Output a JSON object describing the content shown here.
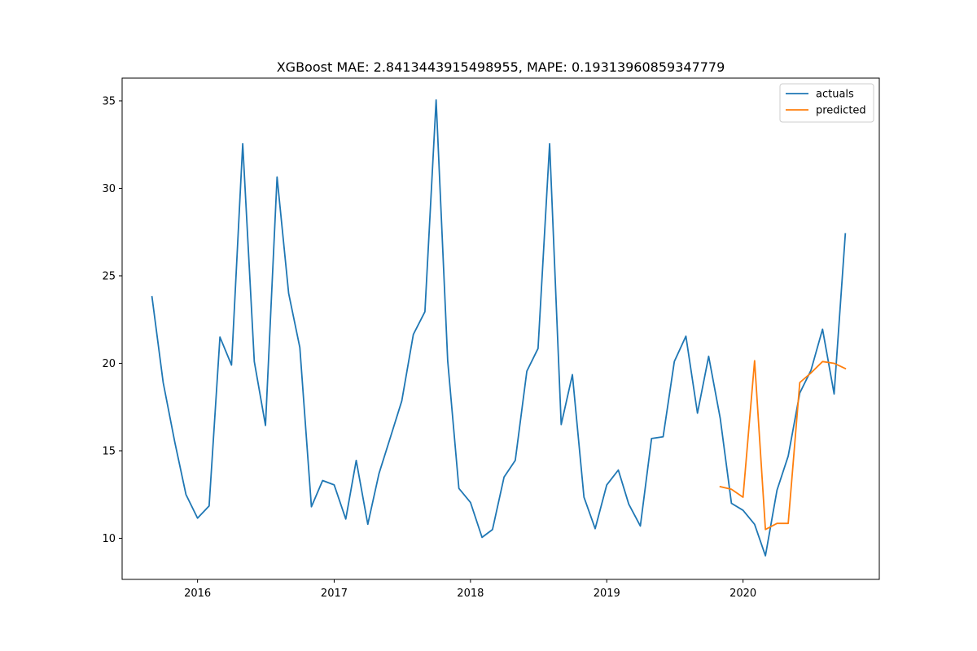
{
  "chart_data": {
    "type": "line",
    "title": "XGBoost MAE: 2.8413443915498955, MAPE: 0.19313960859347779",
    "xlabel": "",
    "ylabel": "",
    "xlim": [
      "2015-06-13",
      "2020-12-31"
    ],
    "ylim": [
      7.65,
      36.3
    ],
    "x_ticks": [
      {
        "date": "2016-01-01",
        "label": "2016"
      },
      {
        "date": "2017-01-01",
        "label": "2017"
      },
      {
        "date": "2018-01-01",
        "label": "2018"
      },
      {
        "date": "2019-01-01",
        "label": "2019"
      },
      {
        "date": "2020-01-01",
        "label": "2020"
      }
    ],
    "y_ticks": [
      10,
      15,
      20,
      25,
      30,
      35
    ],
    "grid": false,
    "legend": {
      "position": "top-right"
    },
    "series": [
      {
        "name": "actuals",
        "color": "#1f77b4",
        "points": [
          [
            "2015-09-01",
            23.8
          ],
          [
            "2015-10-01",
            18.9
          ],
          [
            "2015-11-01",
            15.5
          ],
          [
            "2015-12-01",
            12.5
          ],
          [
            "2016-01-01",
            11.15
          ],
          [
            "2016-02-01",
            11.85
          ],
          [
            "2016-03-01",
            21.5
          ],
          [
            "2016-04-01",
            19.9
          ],
          [
            "2016-05-01",
            32.55
          ],
          [
            "2016-06-01",
            20.1
          ],
          [
            "2016-07-01",
            16.45
          ],
          [
            "2016-08-01",
            30.65
          ],
          [
            "2016-09-01",
            24.0
          ],
          [
            "2016-10-01",
            20.9
          ],
          [
            "2016-11-01",
            11.8
          ],
          [
            "2016-12-01",
            13.3
          ],
          [
            "2017-01-01",
            13.05
          ],
          [
            "2017-02-01",
            11.1
          ],
          [
            "2017-03-01",
            14.45
          ],
          [
            "2017-04-01",
            10.8
          ],
          [
            "2017-05-01",
            13.7
          ],
          [
            "2017-06-01",
            15.8
          ],
          [
            "2017-07-01",
            17.85
          ],
          [
            "2017-08-01",
            21.65
          ],
          [
            "2017-09-01",
            22.95
          ],
          [
            "2017-10-01",
            35.05
          ],
          [
            "2017-11-01",
            20.15
          ],
          [
            "2017-12-01",
            12.85
          ],
          [
            "2018-01-01",
            12.05
          ],
          [
            "2018-02-01",
            10.05
          ],
          [
            "2018-03-01",
            10.5
          ],
          [
            "2018-04-01",
            13.5
          ],
          [
            "2018-05-01",
            14.45
          ],
          [
            "2018-06-01",
            19.55
          ],
          [
            "2018-07-01",
            20.85
          ],
          [
            "2018-08-01",
            32.55
          ],
          [
            "2018-09-01",
            16.5
          ],
          [
            "2018-10-01",
            19.35
          ],
          [
            "2018-11-01",
            12.35
          ],
          [
            "2018-12-01",
            10.55
          ],
          [
            "2019-01-01",
            13.05
          ],
          [
            "2019-02-01",
            13.9
          ],
          [
            "2019-03-01",
            11.95
          ],
          [
            "2019-04-01",
            10.7
          ],
          [
            "2019-05-01",
            15.7
          ],
          [
            "2019-06-01",
            15.8
          ],
          [
            "2019-07-01",
            20.1
          ],
          [
            "2019-08-01",
            21.55
          ],
          [
            "2019-09-01",
            17.15
          ],
          [
            "2019-10-01",
            20.4
          ],
          [
            "2019-11-01",
            16.85
          ],
          [
            "2019-12-01",
            12.0
          ],
          [
            "2020-01-01",
            11.6
          ],
          [
            "2020-02-01",
            10.8
          ],
          [
            "2020-03-01",
            9.0
          ],
          [
            "2020-04-01",
            12.75
          ],
          [
            "2020-05-01",
            14.7
          ],
          [
            "2020-06-01",
            18.3
          ],
          [
            "2020-07-01",
            19.6
          ],
          [
            "2020-08-01",
            21.95
          ],
          [
            "2020-09-01",
            18.25
          ],
          [
            "2020-10-01",
            27.4
          ]
        ]
      },
      {
        "name": "predicted",
        "color": "#ff7f0e",
        "points": [
          [
            "2019-11-01",
            12.95
          ],
          [
            "2019-12-01",
            12.8
          ],
          [
            "2020-01-01",
            12.35
          ],
          [
            "2020-02-01",
            20.15
          ],
          [
            "2020-03-01",
            10.5
          ],
          [
            "2020-04-01",
            10.85
          ],
          [
            "2020-05-01",
            10.85
          ],
          [
            "2020-06-01",
            18.9
          ],
          [
            "2020-07-01",
            19.45
          ],
          [
            "2020-08-01",
            20.1
          ],
          [
            "2020-09-01",
            20.0
          ],
          [
            "2020-10-01",
            19.7
          ]
        ]
      }
    ]
  }
}
